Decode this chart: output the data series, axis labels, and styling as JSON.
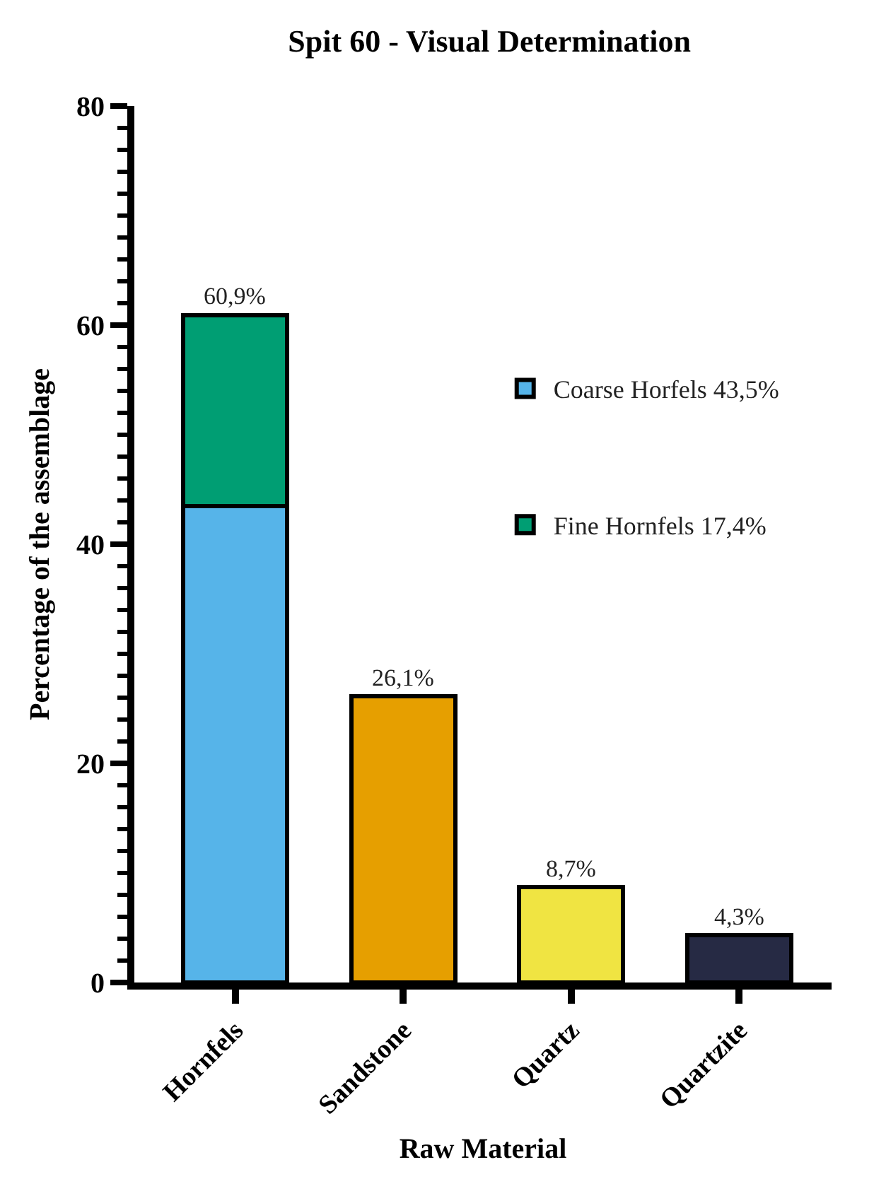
{
  "chart_data": {
    "type": "bar",
    "stacked": true,
    "title": "Spit 60 - Visual Determination",
    "xlabel": "Raw Material",
    "ylabel": "Percentage of the assemblage",
    "categories": [
      "Hornfels",
      "Sandstone",
      "Quartz",
      "Quartzite"
    ],
    "series": [
      {
        "name": "Coarse Horfels 43,5%",
        "color": "#56b4e9",
        "values": [
          43.5,
          null,
          null,
          null
        ]
      },
      {
        "name": "Fine Hornfels 17,4%",
        "color": "#009e73",
        "values": [
          17.4,
          null,
          null,
          null
        ]
      },
      {
        "colors": [
          "#56b4e9",
          "#e69f00",
          "#f0e442",
          "#262a44"
        ],
        "values": [
          null,
          26.1,
          8.7,
          4.3
        ]
      }
    ],
    "totals": [
      "60,9%",
      "26,1%",
      "8,7%",
      "4,3%"
    ],
    "ylim": [
      0,
      80
    ],
    "yticks": [
      0,
      {
        "value": 2,
        "label": null
      },
      {
        "value": 4,
        "label": null
      },
      {
        "value": 6,
        "label": null
      },
      {
        "value": 8,
        "label": null
      },
      {
        "value": 10,
        "label": null
      },
      {
        "value": 12,
        "label": null
      },
      {
        "value": 14,
        "label": null
      },
      {
        "value": 16,
        "label": null
      },
      {
        "value": 18,
        "label": null
      },
      20,
      {
        "value": 22,
        "label": null
      },
      {
        "value": 24,
        "label": null
      },
      {
        "value": 26,
        "label": null
      },
      {
        "value": 28,
        "label": null
      },
      {
        "value": 30,
        "label": null
      },
      {
        "value": 32,
        "label": null
      },
      {
        "value": 34,
        "label": null
      },
      {
        "value": 36,
        "label": null
      },
      {
        "value": 38,
        "label": null
      },
      40,
      {
        "value": 42,
        "label": null
      },
      {
        "value": 44,
        "label": null
      },
      {
        "value": 46,
        "label": null
      },
      {
        "value": 48,
        "label": null
      },
      {
        "value": 50,
        "label": null
      },
      {
        "value": 52,
        "label": null
      },
      {
        "value": 54,
        "label": null
      },
      {
        "value": 56,
        "label": null
      },
      {
        "value": 58,
        "label": null
      },
      60,
      {
        "value": 62,
        "label": null
      },
      {
        "value": 64,
        "label": null
      },
      {
        "value": 66,
        "label": null
      },
      {
        "value": 68,
        "label": null
      },
      {
        "value": 70,
        "label": null
      },
      {
        "value": 72,
        "label": null
      },
      {
        "value": 74,
        "label": null
      },
      {
        "value": 76,
        "label": null
      },
      {
        "value": 78,
        "label": null
      },
      80
    ],
    "legend": "right"
  }
}
